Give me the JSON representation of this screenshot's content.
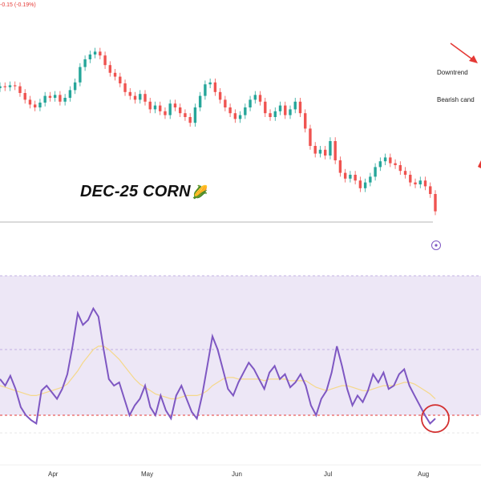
{
  "header": {
    "price_change": "-0.15 (-0.19%)"
  },
  "symbol": {
    "title": "DEC-25 CORN",
    "emoji": "🌽"
  },
  "annotations": {
    "downtrend": "Downtrend",
    "bearish": "Bearish cand"
  },
  "months": [
    "Apr",
    "May",
    "Jun",
    "Jul",
    "Aug"
  ],
  "colors": {
    "up": "#26a69a",
    "down": "#ef5350",
    "rsi_line": "#7e57c2",
    "rsi_ma": "#f5d88a",
    "rsi_band": "#ede7f6",
    "highlight": "#d32f2f"
  },
  "chart_data": {
    "type": "candlestick",
    "title": "DEC-25 CORN",
    "candles": [
      {
        "o": 0.5,
        "c": 0.52
      },
      {
        "o": 0.52,
        "c": 0.51
      },
      {
        "o": 0.51,
        "c": 0.53
      },
      {
        "o": 0.53,
        "c": 0.52
      },
      {
        "o": 0.52,
        "c": 0.45
      },
      {
        "o": 0.45,
        "c": 0.38
      },
      {
        "o": 0.38,
        "c": 0.33
      },
      {
        "o": 0.33,
        "c": 0.3
      },
      {
        "o": 0.3,
        "c": 0.35
      },
      {
        "o": 0.35,
        "c": 0.42
      },
      {
        "o": 0.42,
        "c": 0.4
      },
      {
        "o": 0.4,
        "c": 0.43
      },
      {
        "o": 0.43,
        "c": 0.36
      },
      {
        "o": 0.36,
        "c": 0.4
      },
      {
        "o": 0.4,
        "c": 0.48
      },
      {
        "o": 0.48,
        "c": 0.56
      },
      {
        "o": 0.56,
        "c": 0.72
      },
      {
        "o": 0.72,
        "c": 0.8
      },
      {
        "o": 0.8,
        "c": 0.85
      },
      {
        "o": 0.85,
        "c": 0.88
      },
      {
        "o": 0.88,
        "c": 0.84
      },
      {
        "o": 0.84,
        "c": 0.74
      },
      {
        "o": 0.74,
        "c": 0.66
      },
      {
        "o": 0.66,
        "c": 0.62
      },
      {
        "o": 0.62,
        "c": 0.55
      },
      {
        "o": 0.55,
        "c": 0.46
      },
      {
        "o": 0.46,
        "c": 0.42
      },
      {
        "o": 0.42,
        "c": 0.38
      },
      {
        "o": 0.38,
        "c": 0.44
      },
      {
        "o": 0.44,
        "c": 0.36
      },
      {
        "o": 0.36,
        "c": 0.28
      },
      {
        "o": 0.28,
        "c": 0.32
      },
      {
        "o": 0.32,
        "c": 0.26
      },
      {
        "o": 0.26,
        "c": 0.22
      },
      {
        "o": 0.22,
        "c": 0.34
      },
      {
        "o": 0.34,
        "c": 0.3
      },
      {
        "o": 0.3,
        "c": 0.24
      },
      {
        "o": 0.24,
        "c": 0.2
      },
      {
        "o": 0.2,
        "c": 0.14
      },
      {
        "o": 0.14,
        "c": 0.3
      },
      {
        "o": 0.3,
        "c": 0.42
      },
      {
        "o": 0.42,
        "c": 0.54
      },
      {
        "o": 0.54,
        "c": 0.56
      },
      {
        "o": 0.56,
        "c": 0.46
      },
      {
        "o": 0.46,
        "c": 0.38
      },
      {
        "o": 0.38,
        "c": 0.3
      },
      {
        "o": 0.3,
        "c": 0.24
      },
      {
        "o": 0.24,
        "c": 0.18
      },
      {
        "o": 0.18,
        "c": 0.22
      },
      {
        "o": 0.22,
        "c": 0.3
      },
      {
        "o": 0.3,
        "c": 0.38
      },
      {
        "o": 0.38,
        "c": 0.43
      },
      {
        "o": 0.43,
        "c": 0.36
      },
      {
        "o": 0.36,
        "c": 0.24
      },
      {
        "o": 0.24,
        "c": 0.2
      },
      {
        "o": 0.2,
        "c": 0.26
      },
      {
        "o": 0.26,
        "c": 0.32
      },
      {
        "o": 0.32,
        "c": 0.22
      },
      {
        "o": 0.22,
        "c": 0.28
      },
      {
        "o": 0.28,
        "c": 0.36
      },
      {
        "o": 0.36,
        "c": 0.24
      },
      {
        "o": 0.24,
        "c": 0.08
      },
      {
        "o": 0.08,
        "c": -0.1
      },
      {
        "o": -0.1,
        "c": -0.18
      },
      {
        "o": -0.18,
        "c": -0.14
      },
      {
        "o": -0.14,
        "c": -0.2
      },
      {
        "o": -0.2,
        "c": -0.05
      },
      {
        "o": -0.05,
        "c": -0.25
      },
      {
        "o": -0.25,
        "c": -0.38
      },
      {
        "o": -0.38,
        "c": -0.44
      },
      {
        "o": -0.44,
        "c": -0.4
      },
      {
        "o": -0.4,
        "c": -0.46
      },
      {
        "o": -0.46,
        "c": -0.54
      },
      {
        "o": -0.54,
        "c": -0.48
      },
      {
        "o": -0.48,
        "c": -0.42
      },
      {
        "o": -0.42,
        "c": -0.32
      },
      {
        "o": -0.32,
        "c": -0.26
      },
      {
        "o": -0.26,
        "c": -0.22
      },
      {
        "o": -0.22,
        "c": -0.28
      },
      {
        "o": -0.28,
        "c": -0.3
      },
      {
        "o": -0.3,
        "c": -0.36
      },
      {
        "o": -0.36,
        "c": -0.4
      },
      {
        "o": -0.4,
        "c": -0.48
      },
      {
        "o": -0.48,
        "c": -0.5
      },
      {
        "o": -0.5,
        "c": -0.46
      },
      {
        "o": -0.46,
        "c": -0.52
      },
      {
        "o": -0.52,
        "c": -0.6
      },
      {
        "o": -0.6,
        "c": -0.78
      }
    ],
    "rsi": [
      52,
      48,
      54,
      46,
      35,
      30,
      27,
      25,
      45,
      48,
      44,
      40,
      46,
      55,
      72,
      92,
      85,
      88,
      95,
      90,
      70,
      52,
      48,
      50,
      40,
      30,
      36,
      40,
      48,
      35,
      30,
      42,
      33,
      28,
      42,
      48,
      40,
      32,
      28,
      42,
      60,
      78,
      70,
      58,
      46,
      42,
      50,
      56,
      62,
      58,
      52,
      46,
      56,
      60,
      52,
      55,
      47,
      50,
      55,
      48,
      36,
      30,
      40,
      45,
      56,
      72,
      60,
      46,
      36,
      42,
      38,
      45,
      55,
      50,
      56,
      46,
      48,
      55,
      58,
      48,
      42,
      36,
      30,
      25,
      28
    ],
    "rsi_ma": [
      48,
      47,
      46,
      45,
      44,
      43,
      42,
      42,
      43,
      44,
      45,
      46,
      47,
      49,
      53,
      57,
      62,
      66,
      70,
      72,
      72,
      70,
      67,
      64,
      60,
      56,
      52,
      49,
      47,
      45,
      43,
      42,
      41,
      40,
      40,
      41,
      42,
      42,
      42,
      43,
      45,
      48,
      50,
      52,
      53,
      53,
      52,
      52,
      52,
      52,
      52,
      51,
      52,
      52,
      52,
      52,
      51,
      51,
      51,
      51,
      49,
      47,
      46,
      45,
      46,
      47,
      48,
      48,
      47,
      46,
      45,
      45,
      46,
      47,
      48,
      48,
      48,
      49,
      50,
      50,
      49,
      47,
      45,
      43,
      40
    ],
    "rsi_levels": [
      70,
      30
    ],
    "x_labels": [
      "Apr",
      "May",
      "Jun",
      "Jul",
      "Aug"
    ]
  }
}
